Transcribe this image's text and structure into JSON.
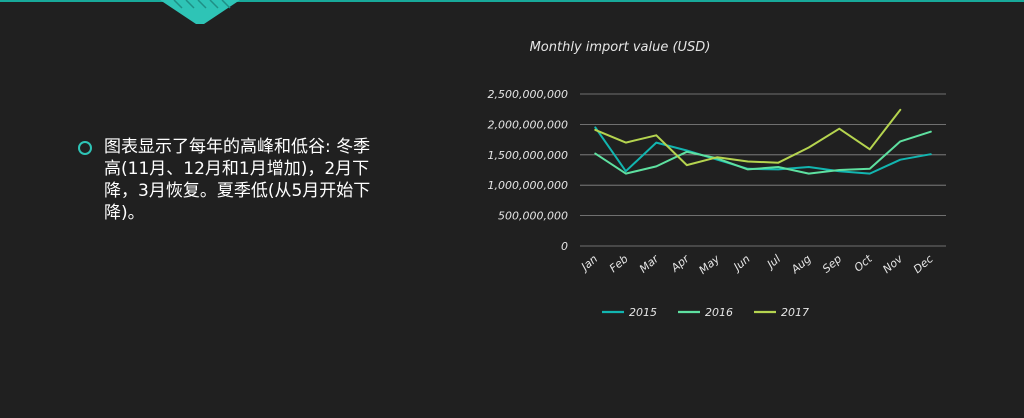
{
  "slide": {
    "bullet_text": "图表显示了每年的高峰和低谷: 冬季高(11月、12月和1月增加)，2月下降，3月恢复。夏季低(从5月开始下降)。"
  },
  "colors": {
    "background": "#202020",
    "accent": "#18a99a",
    "bullet": "#2ec4b6"
  },
  "chart_data": {
    "type": "line",
    "title": "Monthly import value (USD)",
    "xlabel": "",
    "ylabel": "",
    "categories": [
      "Jan",
      "Feb",
      "Mar",
      "Apr",
      "May",
      "Jun",
      "Jul",
      "Aug",
      "Sep",
      "Oct",
      "Nov",
      "Dec"
    ],
    "ylim": [
      0,
      2500000000
    ],
    "yticks": [
      0,
      500000000,
      1000000000,
      1500000000,
      2000000000,
      2500000000
    ],
    "ytick_labels": [
      "0",
      "500,000,000",
      "1,000,000,000",
      "1,500,000,000",
      "2,000,000,000",
      "2,500,000,000"
    ],
    "grid": true,
    "legend_position": "bottom",
    "series": [
      {
        "name": "2015",
        "color": "#12b5b0",
        "values": [
          1950000000,
          1230000000,
          1700000000,
          1570000000,
          1420000000,
          1270000000,
          1260000000,
          1300000000,
          1230000000,
          1190000000,
          1420000000,
          1510000000
        ]
      },
      {
        "name": "2016",
        "color": "#5ee0a0",
        "values": [
          1520000000,
          1190000000,
          1310000000,
          1550000000,
          1440000000,
          1260000000,
          1300000000,
          1190000000,
          1250000000,
          1270000000,
          1720000000,
          1880000000
        ]
      },
      {
        "name": "2017",
        "color": "#b5d44f",
        "values": [
          1910000000,
          1700000000,
          1820000000,
          1330000000,
          1460000000,
          1390000000,
          1370000000,
          1620000000,
          1930000000,
          1590000000,
          2240000000,
          null
        ]
      }
    ]
  }
}
